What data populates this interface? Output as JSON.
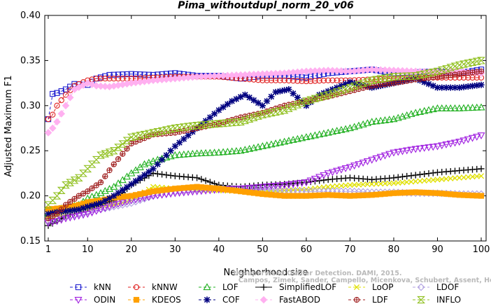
{
  "chart_data": {
    "type": "line",
    "title": "Pima_withoutdupl_norm_20_v06",
    "xlabel": "Neighborhood size",
    "ylabel": "Adjusted Maximum F1",
    "xlim": [
      1,
      100
    ],
    "ylim": [
      0.15,
      0.4
    ],
    "xticks": [
      1,
      10,
      20,
      30,
      40,
      50,
      60,
      70,
      80,
      90,
      100
    ],
    "yticks": [
      "0.15",
      "0.20",
      "0.25",
      "0.30",
      "0.35",
      "0.40"
    ],
    "grid": false,
    "legend_position": "bottom",
    "credit": [
      "Unsupervised Outlier Detection. DAMI, 2015.",
      "Campos, Zimek, Sander, Campello, Micenkova, Schubert, Assent, Houle"
    ],
    "series": [
      {
        "name": "kNN",
        "color": "#2020d0",
        "marker": "square",
        "dash": "4,3",
        "points": [
          [
            1,
            0.285
          ],
          [
            2,
            0.313
          ],
          [
            3,
            0.314
          ],
          [
            5,
            0.318
          ],
          [
            7,
            0.324
          ],
          [
            10,
            0.323
          ],
          [
            12,
            0.33
          ],
          [
            15,
            0.334
          ],
          [
            20,
            0.335
          ],
          [
            25,
            0.334
          ],
          [
            30,
            0.336
          ],
          [
            35,
            0.333
          ],
          [
            40,
            0.333
          ],
          [
            45,
            0.33
          ],
          [
            50,
            0.333
          ],
          [
            55,
            0.333
          ],
          [
            60,
            0.331
          ],
          [
            65,
            0.336
          ],
          [
            70,
            0.338
          ],
          [
            75,
            0.34
          ],
          [
            80,
            0.336
          ],
          [
            85,
            0.337
          ],
          [
            90,
            0.338
          ],
          [
            95,
            0.336
          ],
          [
            100,
            0.34
          ]
        ]
      },
      {
        "name": "kNNW",
        "color": "#e02020",
        "marker": "circle",
        "dash": "4,3",
        "points": [
          [
            1,
            0.285
          ],
          [
            2,
            0.29
          ],
          [
            3,
            0.3
          ],
          [
            5,
            0.312
          ],
          [
            7,
            0.322
          ],
          [
            10,
            0.328
          ],
          [
            12,
            0.33
          ],
          [
            15,
            0.33
          ],
          [
            20,
            0.33
          ],
          [
            25,
            0.331
          ],
          [
            30,
            0.332
          ],
          [
            35,
            0.332
          ],
          [
            40,
            0.332
          ],
          [
            45,
            0.33
          ],
          [
            50,
            0.328
          ],
          [
            55,
            0.328
          ],
          [
            60,
            0.327
          ],
          [
            65,
            0.328
          ],
          [
            70,
            0.328
          ],
          [
            75,
            0.329
          ],
          [
            80,
            0.33
          ],
          [
            85,
            0.331
          ],
          [
            90,
            0.331
          ],
          [
            95,
            0.331
          ],
          [
            100,
            0.331
          ]
        ]
      },
      {
        "name": "LOF",
        "color": "#20b020",
        "marker": "triangle-up",
        "dash": "4,3",
        "points": [
          [
            1,
            0.18
          ],
          [
            3,
            0.185
          ],
          [
            5,
            0.187
          ],
          [
            8,
            0.19
          ],
          [
            10,
            0.197
          ],
          [
            13,
            0.203
          ],
          [
            16,
            0.21
          ],
          [
            20,
            0.225
          ],
          [
            23,
            0.235
          ],
          [
            26,
            0.24
          ],
          [
            30,
            0.245
          ],
          [
            35,
            0.247
          ],
          [
            40,
            0.248
          ],
          [
            45,
            0.25
          ],
          [
            50,
            0.255
          ],
          [
            55,
            0.26
          ],
          [
            60,
            0.265
          ],
          [
            65,
            0.27
          ],
          [
            70,
            0.275
          ],
          [
            75,
            0.282
          ],
          [
            80,
            0.285
          ],
          [
            85,
            0.292
          ],
          [
            90,
            0.297
          ],
          [
            95,
            0.297
          ],
          [
            100,
            0.298
          ]
        ]
      },
      {
        "name": "SimplifiedLOF",
        "color": "#000000",
        "marker": "plus",
        "dash": "",
        "points": [
          [
            1,
            0.167
          ],
          [
            3,
            0.172
          ],
          [
            5,
            0.178
          ],
          [
            8,
            0.183
          ],
          [
            10,
            0.186
          ],
          [
            13,
            0.19
          ],
          [
            16,
            0.195
          ],
          [
            20,
            0.212
          ],
          [
            25,
            0.225
          ],
          [
            30,
            0.222
          ],
          [
            35,
            0.22
          ],
          [
            40,
            0.212
          ],
          [
            45,
            0.21
          ],
          [
            50,
            0.212
          ],
          [
            55,
            0.213
          ],
          [
            60,
            0.215
          ],
          [
            65,
            0.218
          ],
          [
            70,
            0.22
          ],
          [
            75,
            0.218
          ],
          [
            80,
            0.22
          ],
          [
            85,
            0.223
          ],
          [
            90,
            0.226
          ],
          [
            95,
            0.228
          ],
          [
            100,
            0.23
          ]
        ]
      },
      {
        "name": "LoOP",
        "color": "#e0e000",
        "marker": "cross",
        "dash": "4,3",
        "points": [
          [
            1,
            0.175
          ],
          [
            3,
            0.178
          ],
          [
            5,
            0.18
          ],
          [
            8,
            0.183
          ],
          [
            10,
            0.185
          ],
          [
            13,
            0.188
          ],
          [
            16,
            0.19
          ],
          [
            20,
            0.195
          ],
          [
            25,
            0.21
          ],
          [
            30,
            0.208
          ],
          [
            35,
            0.207
          ],
          [
            40,
            0.206
          ],
          [
            45,
            0.205
          ],
          [
            50,
            0.205
          ],
          [
            55,
            0.206
          ],
          [
            60,
            0.207
          ],
          [
            65,
            0.21
          ],
          [
            70,
            0.212
          ],
          [
            75,
            0.213
          ],
          [
            80,
            0.214
          ],
          [
            85,
            0.216
          ],
          [
            90,
            0.218
          ],
          [
            95,
            0.22
          ],
          [
            100,
            0.222
          ]
        ]
      },
      {
        "name": "LDOF",
        "color": "#b0a0e0",
        "marker": "diamond",
        "dash": "4,3",
        "points": [
          [
            1,
            0.172
          ],
          [
            3,
            0.175
          ],
          [
            5,
            0.177
          ],
          [
            8,
            0.18
          ],
          [
            10,
            0.182
          ],
          [
            13,
            0.185
          ],
          [
            16,
            0.188
          ],
          [
            20,
            0.192
          ],
          [
            25,
            0.2
          ],
          [
            30,
            0.205
          ],
          [
            35,
            0.207
          ],
          [
            40,
            0.208
          ],
          [
            45,
            0.208
          ],
          [
            50,
            0.207
          ],
          [
            55,
            0.206
          ],
          [
            60,
            0.205
          ],
          [
            65,
            0.205
          ],
          [
            70,
            0.205
          ],
          [
            75,
            0.204
          ],
          [
            80,
            0.204
          ],
          [
            85,
            0.203
          ],
          [
            90,
            0.203
          ],
          [
            95,
            0.202
          ],
          [
            100,
            0.202
          ]
        ]
      },
      {
        "name": "ODIN",
        "color": "#a020e0",
        "marker": "triangle-down",
        "dash": "4,3",
        "points": [
          [
            1,
            0.17
          ],
          [
            3,
            0.172
          ],
          [
            5,
            0.175
          ],
          [
            8,
            0.178
          ],
          [
            10,
            0.18
          ],
          [
            13,
            0.185
          ],
          [
            16,
            0.19
          ],
          [
            20,
            0.195
          ],
          [
            25,
            0.2
          ],
          [
            30,
            0.203
          ],
          [
            35,
            0.205
          ],
          [
            40,
            0.207
          ],
          [
            45,
            0.208
          ],
          [
            50,
            0.21
          ],
          [
            55,
            0.212
          ],
          [
            60,
            0.215
          ],
          [
            65,
            0.225
          ],
          [
            70,
            0.232
          ],
          [
            75,
            0.24
          ],
          [
            80,
            0.248
          ],
          [
            85,
            0.252
          ],
          [
            90,
            0.255
          ],
          [
            95,
            0.26
          ],
          [
            100,
            0.267
          ]
        ]
      },
      {
        "name": "KDEOS",
        "color": "#ffa000",
        "marker": "square-filled",
        "dash": "4,3",
        "points": [
          [
            1,
            0.185
          ],
          [
            3,
            0.186
          ],
          [
            5,
            0.187
          ],
          [
            8,
            0.19
          ],
          [
            10,
            0.193
          ],
          [
            13,
            0.195
          ],
          [
            16,
            0.198
          ],
          [
            20,
            0.2
          ],
          [
            25,
            0.205
          ],
          [
            30,
            0.208
          ],
          [
            35,
            0.21
          ],
          [
            40,
            0.208
          ],
          [
            45,
            0.205
          ],
          [
            50,
            0.202
          ],
          [
            55,
            0.2
          ],
          [
            60,
            0.2
          ],
          [
            65,
            0.201
          ],
          [
            70,
            0.2
          ],
          [
            75,
            0.201
          ],
          [
            80,
            0.203
          ],
          [
            85,
            0.204
          ],
          [
            90,
            0.203
          ],
          [
            95,
            0.201
          ],
          [
            100,
            0.2
          ]
        ]
      },
      {
        "name": "COF",
        "color": "#000080",
        "marker": "asterisk",
        "dash": "4,3",
        "points": [
          [
            1,
            0.18
          ],
          [
            3,
            0.182
          ],
          [
            5,
            0.183
          ],
          [
            8,
            0.185
          ],
          [
            10,
            0.188
          ],
          [
            13,
            0.192
          ],
          [
            16,
            0.2
          ],
          [
            20,
            0.213
          ],
          [
            25,
            0.23
          ],
          [
            30,
            0.255
          ],
          [
            35,
            0.275
          ],
          [
            40,
            0.295
          ],
          [
            43,
            0.305
          ],
          [
            46,
            0.312
          ],
          [
            50,
            0.3
          ],
          [
            53,
            0.315
          ],
          [
            56,
            0.318
          ],
          [
            60,
            0.3
          ],
          [
            63,
            0.312
          ],
          [
            66,
            0.318
          ],
          [
            70,
            0.326
          ],
          [
            75,
            0.32
          ],
          [
            80,
            0.325
          ],
          [
            85,
            0.33
          ],
          [
            90,
            0.32
          ],
          [
            95,
            0.32
          ],
          [
            100,
            0.323
          ]
        ]
      },
      {
        "name": "FastABOD",
        "color": "#ffb0f0",
        "marker": "diamond-filled",
        "dash": "4,3",
        "points": [
          [
            1,
            0.27
          ],
          [
            2,
            0.275
          ],
          [
            3,
            0.282
          ],
          [
            5,
            0.3
          ],
          [
            7,
            0.318
          ],
          [
            10,
            0.325
          ],
          [
            12,
            0.322
          ],
          [
            15,
            0.321
          ],
          [
            20,
            0.325
          ],
          [
            25,
            0.328
          ],
          [
            30,
            0.33
          ],
          [
            35,
            0.332
          ],
          [
            40,
            0.333
          ],
          [
            45,
            0.334
          ],
          [
            50,
            0.335
          ],
          [
            55,
            0.336
          ],
          [
            60,
            0.338
          ],
          [
            65,
            0.339
          ],
          [
            70,
            0.338
          ],
          [
            75,
            0.34
          ],
          [
            80,
            0.339
          ],
          [
            85,
            0.338
          ],
          [
            90,
            0.337
          ],
          [
            95,
            0.338
          ],
          [
            100,
            0.336
          ]
        ]
      },
      {
        "name": "LDF",
        "color": "#a02020",
        "marker": "circle-plus",
        "dash": "4,3",
        "points": [
          [
            1,
            0.175
          ],
          [
            3,
            0.18
          ],
          [
            5,
            0.19
          ],
          [
            8,
            0.2
          ],
          [
            10,
            0.205
          ],
          [
            13,
            0.215
          ],
          [
            16,
            0.235
          ],
          [
            20,
            0.258
          ],
          [
            25,
            0.268
          ],
          [
            30,
            0.27
          ],
          [
            35,
            0.275
          ],
          [
            40,
            0.28
          ],
          [
            45,
            0.287
          ],
          [
            50,
            0.292
          ],
          [
            55,
            0.3
          ],
          [
            60,
            0.305
          ],
          [
            65,
            0.31
          ],
          [
            70,
            0.316
          ],
          [
            75,
            0.322
          ],
          [
            80,
            0.325
          ],
          [
            85,
            0.329
          ],
          [
            90,
            0.332
          ],
          [
            95,
            0.335
          ],
          [
            100,
            0.338
          ]
        ]
      },
      {
        "name": "INFLO",
        "color": "#90c020",
        "marker": "hourglass",
        "dash": "4,3",
        "points": [
          [
            1,
            0.19
          ],
          [
            3,
            0.2
          ],
          [
            5,
            0.212
          ],
          [
            8,
            0.22
          ],
          [
            10,
            0.23
          ],
          [
            13,
            0.245
          ],
          [
            16,
            0.25
          ],
          [
            20,
            0.265
          ],
          [
            25,
            0.27
          ],
          [
            30,
            0.275
          ],
          [
            35,
            0.278
          ],
          [
            40,
            0.28
          ],
          [
            45,
            0.282
          ],
          [
            50,
            0.29
          ],
          [
            55,
            0.295
          ],
          [
            60,
            0.305
          ],
          [
            65,
            0.312
          ],
          [
            70,
            0.32
          ],
          [
            75,
            0.328
          ],
          [
            80,
            0.332
          ],
          [
            85,
            0.333
          ],
          [
            90,
            0.338
          ],
          [
            95,
            0.345
          ],
          [
            100,
            0.35
          ]
        ]
      }
    ]
  }
}
